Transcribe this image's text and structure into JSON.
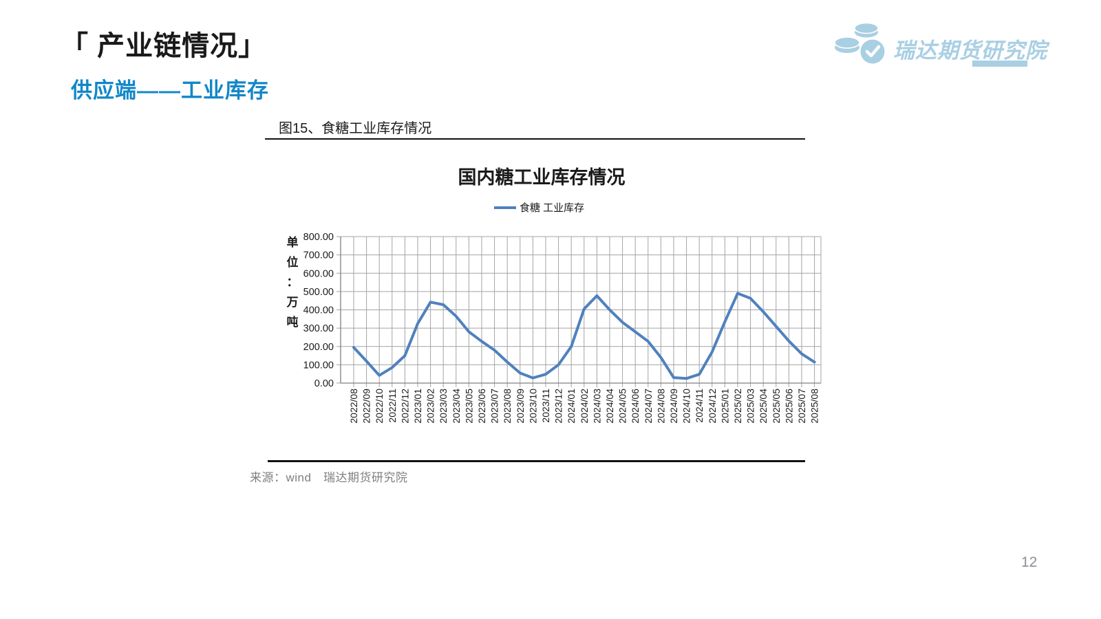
{
  "page": {
    "title": "「 产业链情况」",
    "subtitle": "供应端——工业库存",
    "page_number": "12"
  },
  "logo": {
    "text": "瑞达期货研究院",
    "icon": "coins-check-icon",
    "color": "#a9cfe3"
  },
  "figure": {
    "caption": "图15、食糖工业库存情况",
    "source": "来源：wind　瑞达期货研究院"
  },
  "colors": {
    "subtitle_blue": "#1287c8",
    "logo_blue": "#a9cfe3",
    "line_blue": "#4f81bd",
    "gridline_gray": "#a3a3a3",
    "axis_gray": "#7f7f7f",
    "text_gray": "#7f7f7f"
  },
  "chart_data": {
    "type": "line",
    "title": "国内糖工业库存情况",
    "legend": "食糖 工业库存",
    "legend_position": "top",
    "unit_label": "单位：万吨",
    "ylim": [
      0,
      800
    ],
    "ytick_step": 100,
    "grid": true,
    "line_color": "#4f81bd",
    "categories": [
      "2022/08",
      "2022/09",
      "2022/10",
      "2022/11",
      "2022/12",
      "2023/01",
      "2023/02",
      "2023/03",
      "2023/04",
      "2023/05",
      "2023/06",
      "2023/07",
      "2023/08",
      "2023/09",
      "2023/10",
      "2023/11",
      "2023/12",
      "2024/01",
      "2024/02",
      "2024/03",
      "2024/04",
      "2024/05",
      "2024/06",
      "2024/07",
      "2024/08",
      "2024/09",
      "2024/10",
      "2024/11",
      "2024/12",
      "2025/01",
      "2025/02",
      "2025/03",
      "2025/04",
      "2025/05",
      "2025/06",
      "2025/07",
      "2025/08"
    ],
    "values": [
      195,
      120,
      42,
      85,
      150,
      325,
      442,
      428,
      365,
      280,
      228,
      180,
      115,
      55,
      28,
      48,
      100,
      200,
      405,
      477,
      400,
      332,
      280,
      228,
      140,
      30,
      25,
      48,
      170,
      335,
      490,
      463,
      390,
      310,
      230,
      160,
      115
    ]
  }
}
